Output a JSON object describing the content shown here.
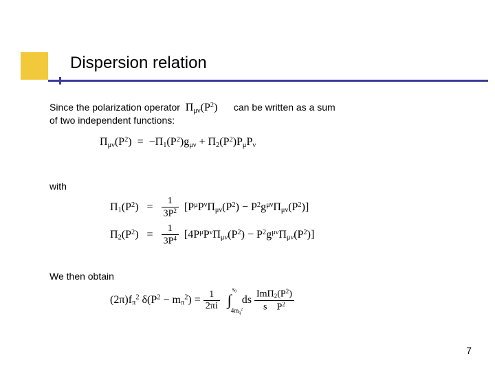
{
  "title": "Dispersion relation",
  "intro_part1": "Since the  polarization operator",
  "intro_op": "Πμν(P²)",
  "intro_part2": "can be written as a sum",
  "intro_line2": "of two independent functions:",
  "eq_main": "Πμν(P²)  =  −Π₁(P²)gμν + Π₂(P²)PμPν",
  "with_label": "with",
  "eq_pi1_left": "Π₁(P²)",
  "eq_pi1_right": "[PμPνΠμν(P²) − P²gμνΠμν(P²)]",
  "eq_pi1_frac_num": "1",
  "eq_pi1_frac_den": "3P²",
  "eq_pi2_left": "Π₂(P²)",
  "eq_pi2_right": "[4PμPνΠμν(P²) − P²gμνΠμν(P²)]",
  "eq_pi2_frac_num": "1",
  "eq_pi2_frac_den": "3P⁴",
  "obtain_label": "We then obtain",
  "eq_final_lhs": "(2π)fπ² δ(P² − mπ²) =",
  "eq_final_rhs_frac_num": "1",
  "eq_final_rhs_frac_den": "2πi",
  "eq_final_int_l": "4mq²",
  "eq_final_int_u": "s₀",
  "eq_final_ds": "ds",
  "eq_final_frac2_num": "ImΠ₂(P²)",
  "eq_final_frac2_den": "s − P²",
  "page_number": "7",
  "colors": {
    "accent_yellow": "#f2c93a",
    "accent_blue": "#3a3a99",
    "bg": "#ffffff",
    "text": "#000000"
  }
}
